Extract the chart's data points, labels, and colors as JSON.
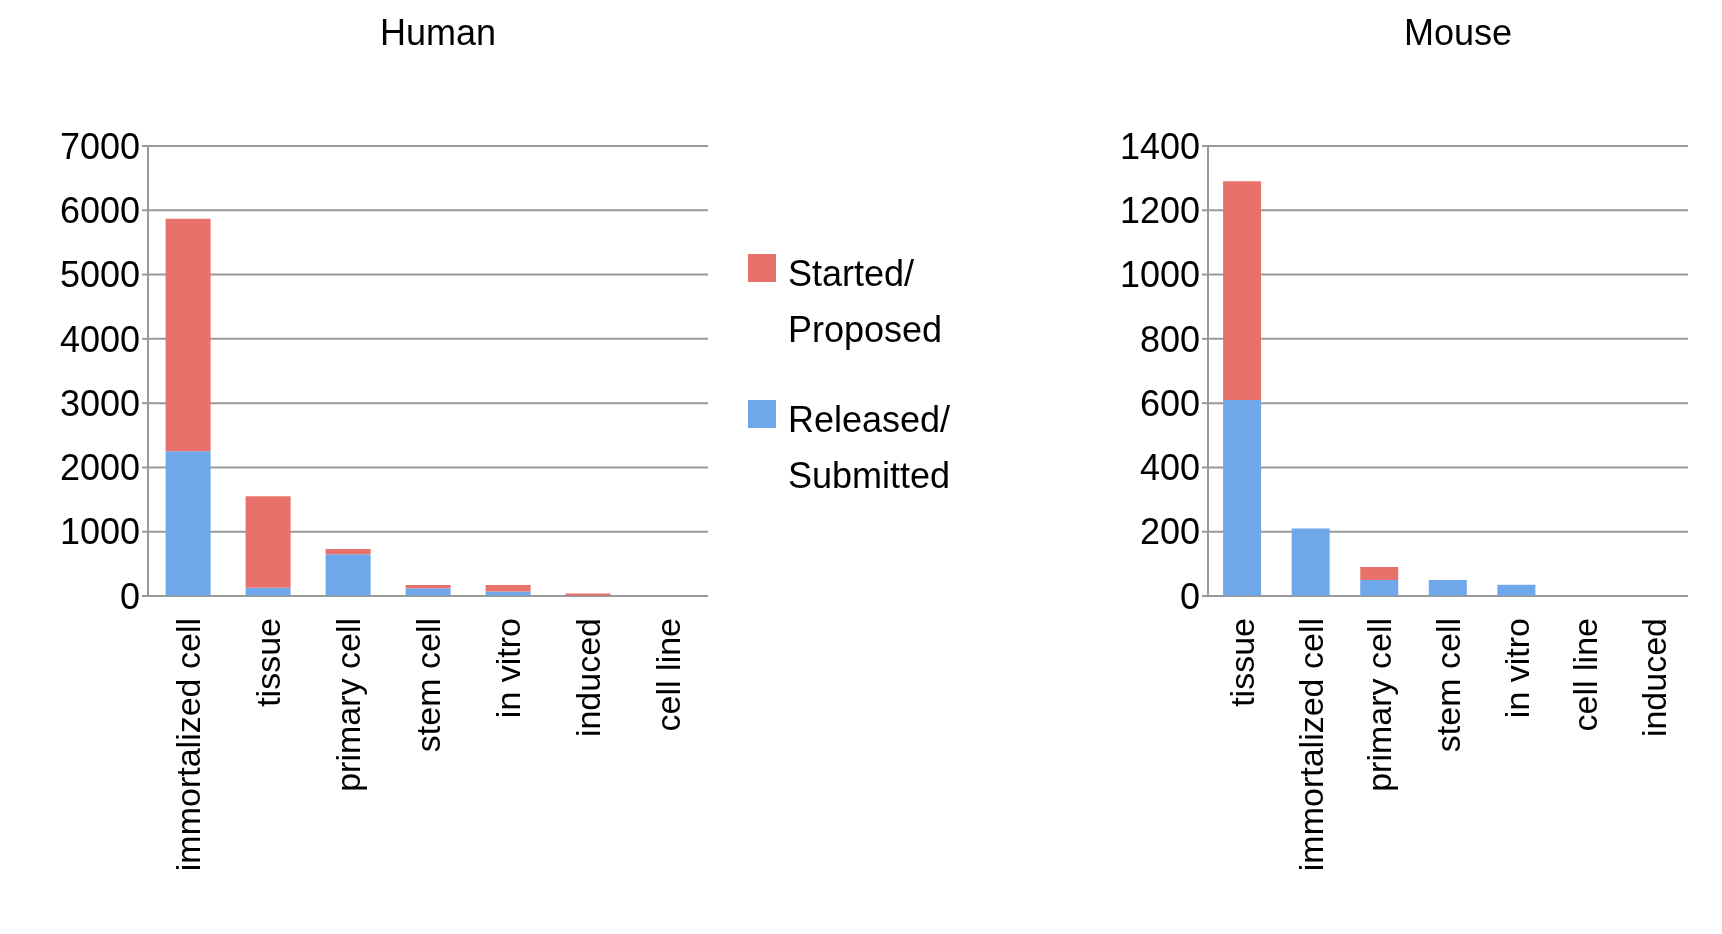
{
  "chart_data": [
    {
      "type": "bar",
      "title": "Human",
      "stacked": true,
      "grid": "y",
      "legend": "right",
      "categories": [
        "immortalized cell",
        "tissue",
        "primary cell",
        "stem cell",
        "in vitro",
        "induced",
        "cell line"
      ],
      "series": [
        {
          "name": "Released/Submitted",
          "color": "#6fa8ea",
          "values": [
            2250,
            130,
            650,
            120,
            70,
            0,
            0
          ]
        },
        {
          "name": "Started/Proposed",
          "color": "#e8726b",
          "values": [
            3620,
            1420,
            80,
            50,
            100,
            40,
            0
          ]
        }
      ],
      "ylim": [
        0,
        7000
      ],
      "yticks": [
        0,
        1000,
        2000,
        3000,
        4000,
        5000,
        6000,
        7000
      ]
    },
    {
      "type": "bar",
      "title": "Mouse",
      "stacked": true,
      "grid": "y",
      "categories": [
        "tissue",
        "immortalized cell",
        "primary cell",
        "stem cell",
        "in vitro",
        "cell line",
        "induced"
      ],
      "series": [
        {
          "color": "#6fa8ea",
          "values": [
            610,
            210,
            50,
            50,
            35,
            0,
            0
          ]
        },
        {
          "color": "#e8726b",
          "values": [
            680,
            0,
            40,
            0,
            0,
            null,
            0
          ]
        }
      ],
      "ylim": [
        0,
        1400
      ],
      "yticks": [
        0,
        200,
        400,
        600,
        800,
        1000,
        1200,
        1400
      ]
    }
  ]
}
